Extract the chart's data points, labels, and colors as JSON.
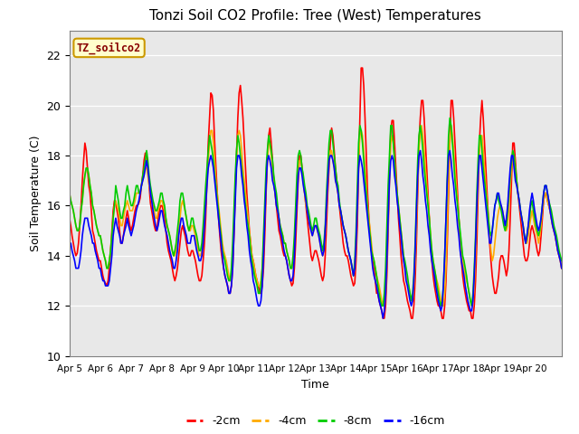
{
  "title": "Tonzi Soil CO2 Profile: Tree (West) Temperatures",
  "xlabel": "Time",
  "ylabel": "Soil Temperature (C)",
  "ylim": [
    10,
    23
  ],
  "yticks": [
    10,
    12,
    14,
    16,
    18,
    20,
    22
  ],
  "background_color": "#e8e8e8",
  "legend_label": "TZ_soilco2",
  "series_labels": [
    "-2cm",
    "-4cm",
    "-8cm",
    "-16cm"
  ],
  "series_colors": [
    "#ff0000",
    "#ffaa00",
    "#00cc00",
    "#0000ff"
  ],
  "xtick_labels": [
    "Apr 5",
    "Apr 6",
    "Apr 7",
    "Apr 8",
    "Apr 9",
    "Apr 10",
    "Apr 11",
    "Apr 12",
    "Apr 13",
    "Apr 14",
    "Apr 15",
    "Apr 16",
    "Apr 17",
    "Apr 18",
    "Apr 19",
    "Apr 20"
  ],
  "n_days": 16,
  "n_points_per_day": 24,
  "t2cm": [
    15.5,
    15.2,
    14.8,
    14.5,
    14.2,
    14.0,
    14.1,
    14.5,
    15.2,
    16.0,
    17.0,
    17.8,
    18.5,
    18.2,
    17.5,
    16.8,
    16.5,
    15.8,
    15.0,
    14.8,
    14.5,
    14.2,
    14.0,
    13.8,
    13.8,
    13.5,
    13.2,
    13.0,
    12.9,
    12.8,
    13.0,
    13.5,
    14.2,
    15.0,
    15.8,
    16.2,
    16.1,
    15.8,
    15.5,
    15.0,
    14.5,
    14.5,
    14.8,
    15.2,
    15.5,
    15.8,
    15.5,
    15.2,
    15.0,
    15.2,
    15.5,
    15.8,
    16.0,
    16.0,
    16.1,
    16.3,
    16.8,
    17.2,
    17.8,
    18.1,
    18.0,
    17.5,
    16.8,
    16.1,
    15.8,
    15.5,
    15.2,
    15.0,
    15.0,
    15.5,
    15.8,
    16.0,
    16.0,
    15.8,
    15.5,
    15.0,
    14.5,
    14.2,
    14.0,
    13.8,
    13.5,
    13.2,
    13.0,
    13.2,
    13.5,
    14.0,
    14.5,
    15.0,
    15.2,
    15.0,
    14.8,
    14.5,
    14.2,
    14.0,
    14.0,
    14.2,
    14.2,
    14.0,
    13.8,
    13.5,
    13.2,
    13.0,
    13.0,
    13.2,
    13.8,
    14.5,
    15.5,
    17.0,
    18.5,
    19.5,
    20.5,
    20.4,
    19.8,
    18.5,
    17.5,
    16.5,
    15.5,
    14.8,
    14.2,
    13.8,
    13.5,
    13.2,
    13.0,
    12.8,
    12.5,
    12.5,
    12.8,
    13.5,
    14.8,
    16.5,
    18.0,
    19.5,
    20.5,
    20.8,
    20.2,
    19.5,
    18.5,
    17.5,
    16.5,
    15.8,
    15.0,
    14.5,
    14.0,
    13.8,
    13.5,
    13.2,
    13.0,
    12.8,
    12.5,
    12.5,
    12.8,
    13.5,
    14.8,
    16.5,
    17.8,
    18.8,
    19.1,
    18.5,
    17.8,
    17.0,
    16.5,
    16.0,
    15.5,
    15.0,
    14.8,
    14.5,
    14.2,
    14.0,
    14.0,
    13.8,
    13.5,
    13.2,
    13.0,
    12.8,
    12.9,
    13.5,
    14.5,
    15.8,
    17.0,
    18.0,
    18.0,
    17.5,
    17.0,
    16.5,
    16.0,
    15.5,
    15.0,
    14.5,
    14.0,
    13.8,
    14.0,
    14.2,
    14.2,
    14.0,
    13.8,
    13.5,
    13.2,
    13.0,
    13.2,
    14.0,
    15.2,
    16.5,
    17.5,
    18.5,
    19.1,
    18.8,
    18.2,
    17.5,
    17.0,
    16.5,
    16.0,
    15.5,
    15.0,
    14.5,
    14.2,
    14.0,
    14.0,
    13.8,
    13.5,
    13.2,
    13.0,
    12.8,
    12.9,
    13.8,
    15.2,
    17.5,
    19.5,
    21.5,
    21.5,
    20.8,
    19.5,
    18.0,
    16.5,
    15.5,
    14.8,
    14.2,
    13.8,
    13.5,
    13.0,
    12.5,
    12.5,
    12.2,
    12.0,
    11.8,
    11.5,
    11.5,
    12.0,
    13.2,
    15.0,
    17.0,
    19.0,
    19.4,
    19.4,
    18.5,
    17.5,
    16.5,
    15.5,
    14.8,
    14.0,
    13.5,
    13.0,
    12.8,
    12.5,
    12.2,
    12.0,
    11.8,
    11.5,
    11.5,
    12.0,
    13.0,
    14.5,
    16.5,
    18.5,
    19.5,
    20.2,
    20.2,
    19.5,
    18.5,
    17.5,
    16.5,
    15.5,
    14.5,
    13.8,
    13.2,
    12.8,
    12.5,
    12.2,
    12.0,
    12.0,
    11.8,
    11.5,
    11.5,
    12.0,
    13.0,
    14.5,
    16.5,
    18.5,
    20.2,
    20.2,
    19.5,
    18.5,
    17.5,
    16.5,
    15.5,
    14.5,
    13.8,
    13.2,
    12.8,
    12.5,
    12.2,
    12.0,
    11.8,
    11.8,
    11.5,
    11.5,
    12.0,
    13.0,
    14.5,
    16.5,
    18.5,
    19.5,
    20.2,
    19.5,
    18.5,
    17.5,
    16.5,
    15.5,
    14.5,
    13.8,
    13.2,
    12.8,
    12.5,
    12.5,
    12.8,
    13.2,
    13.8,
    14.0,
    14.0,
    13.8,
    13.5,
    13.2,
    13.5,
    14.2,
    15.5,
    17.0,
    18.5,
    18.5,
    17.8,
    17.0,
    16.5,
    16.0,
    15.5,
    15.0,
    14.5,
    14.0,
    13.8,
    13.8,
    14.0,
    14.5,
    15.0,
    15.2,
    15.0,
    14.8,
    14.5,
    14.2,
    14.0,
    14.2,
    14.8,
    15.5,
    16.2,
    16.5,
    16.5,
    16.2,
    16.0,
    15.8,
    15.5,
    15.2,
    15.0,
    14.8,
    14.5,
    14.2,
    14.0,
    13.8,
    13.5
  ],
  "t4cm": [
    16.5,
    16.2,
    16.0,
    15.8,
    15.5,
    15.2,
    15.0,
    15.0,
    15.2,
    15.8,
    16.2,
    16.8,
    17.2,
    17.5,
    17.5,
    17.2,
    16.8,
    16.5,
    16.0,
    15.8,
    15.5,
    15.2,
    15.0,
    14.8,
    14.8,
    14.5,
    14.2,
    14.0,
    13.8,
    13.5,
    13.5,
    13.8,
    14.2,
    14.8,
    15.5,
    16.0,
    16.2,
    16.0,
    15.8,
    15.5,
    15.2,
    15.2,
    15.5,
    15.8,
    16.0,
    16.2,
    16.0,
    15.8,
    15.8,
    15.8,
    16.0,
    16.2,
    16.5,
    16.5,
    16.5,
    16.5,
    16.8,
    17.0,
    17.2,
    17.5,
    17.5,
    17.2,
    16.8,
    16.5,
    16.2,
    16.0,
    15.8,
    15.5,
    15.5,
    15.8,
    16.0,
    16.2,
    16.2,
    16.0,
    15.8,
    15.5,
    15.2,
    15.0,
    14.8,
    14.5,
    14.2,
    14.0,
    14.0,
    14.2,
    14.5,
    15.0,
    15.5,
    16.0,
    16.2,
    16.0,
    15.8,
    15.5,
    15.2,
    15.0,
    15.0,
    15.2,
    15.2,
    15.0,
    14.8,
    14.5,
    14.2,
    14.0,
    14.0,
    14.2,
    14.8,
    15.5,
    16.2,
    17.0,
    17.8,
    18.5,
    19.0,
    19.0,
    18.5,
    17.8,
    17.0,
    16.5,
    16.0,
    15.5,
    15.0,
    14.5,
    14.2,
    14.0,
    13.8,
    13.5,
    13.2,
    13.0,
    13.2,
    14.0,
    15.2,
    16.8,
    17.8,
    18.8,
    19.0,
    18.8,
    18.2,
    17.5,
    17.0,
    16.5,
    16.0,
    15.5,
    15.0,
    14.5,
    14.0,
    13.8,
    13.5,
    13.2,
    13.0,
    12.8,
    12.8,
    13.0,
    13.5,
    14.5,
    15.8,
    17.0,
    17.8,
    18.5,
    18.5,
    18.0,
    17.5,
    17.0,
    16.5,
    16.2,
    15.8,
    15.5,
    15.2,
    15.0,
    14.8,
    14.5,
    14.5,
    14.2,
    14.0,
    13.8,
    13.5,
    13.5,
    13.8,
    14.5,
    15.5,
    16.5,
    17.5,
    17.8,
    17.8,
    17.5,
    17.0,
    16.5,
    16.0,
    15.8,
    15.5,
    15.2,
    15.0,
    14.8,
    15.0,
    15.2,
    15.2,
    15.0,
    14.8,
    14.5,
    14.2,
    14.0,
    14.2,
    15.0,
    16.0,
    17.0,
    17.8,
    18.2,
    18.2,
    17.8,
    17.5,
    17.0,
    16.8,
    16.5,
    16.0,
    15.8,
    15.5,
    15.2,
    15.0,
    14.8,
    14.5,
    14.2,
    14.0,
    13.8,
    13.5,
    13.2,
    13.5,
    14.5,
    16.0,
    17.8,
    18.8,
    19.0,
    18.8,
    18.2,
    17.5,
    16.8,
    16.0,
    15.5,
    15.0,
    14.5,
    14.0,
    13.8,
    13.5,
    13.2,
    13.0,
    12.8,
    12.5,
    12.2,
    12.0,
    12.0,
    12.5,
    13.8,
    15.5,
    17.2,
    18.5,
    18.8,
    18.5,
    17.8,
    17.0,
    16.5,
    16.0,
    15.5,
    15.0,
    14.5,
    14.0,
    13.5,
    13.2,
    13.0,
    12.8,
    12.5,
    12.2,
    12.2,
    12.8,
    13.8,
    15.2,
    17.0,
    18.2,
    19.0,
    19.2,
    18.8,
    18.2,
    17.5,
    16.8,
    16.2,
    15.5,
    14.8,
    14.2,
    13.8,
    13.5,
    13.2,
    13.0,
    12.8,
    12.5,
    12.2,
    12.0,
    12.0,
    12.5,
    13.5,
    15.0,
    17.0,
    18.5,
    19.2,
    18.8,
    18.2,
    17.5,
    16.8,
    16.2,
    15.5,
    14.8,
    14.2,
    13.8,
    13.5,
    13.2,
    13.0,
    12.8,
    12.5,
    12.2,
    12.0,
    12.2,
    12.8,
    14.0,
    15.5,
    17.0,
    18.2,
    18.8,
    18.8,
    18.2,
    17.5,
    16.8,
    16.2,
    15.5,
    14.8,
    14.2,
    13.8,
    14.0,
    14.5,
    15.0,
    15.5,
    15.8,
    16.0,
    16.0,
    15.8,
    15.5,
    15.2,
    15.0,
    15.2,
    16.0,
    16.8,
    17.5,
    18.0,
    18.0,
    17.5,
    17.0,
    16.5,
    16.2,
    15.8,
    15.5,
    15.2,
    14.8,
    14.5,
    14.5,
    14.8,
    15.2,
    15.5,
    15.8,
    15.5,
    15.2,
    15.0,
    14.8,
    14.5,
    14.8,
    15.2,
    15.8,
    16.2,
    16.5,
    16.5,
    16.2,
    16.0,
    15.8,
    15.5,
    15.2,
    15.0,
    14.8,
    14.5,
    14.2,
    14.0,
    13.8,
    13.5
  ],
  "t8cm": [
    16.5,
    16.2,
    16.0,
    15.8,
    15.5,
    15.2,
    15.0,
    15.0,
    15.2,
    15.8,
    16.2,
    16.8,
    17.2,
    17.5,
    17.5,
    17.2,
    16.8,
    16.5,
    16.0,
    15.8,
    15.5,
    15.2,
    15.0,
    14.8,
    14.8,
    14.5,
    14.2,
    14.0,
    13.8,
    13.5,
    13.5,
    13.8,
    14.2,
    14.8,
    15.5,
    16.0,
    16.8,
    16.5,
    16.2,
    15.8,
    15.5,
    15.5,
    15.8,
    16.0,
    16.5,
    16.8,
    16.5,
    16.2,
    16.0,
    16.0,
    16.2,
    16.5,
    16.8,
    16.8,
    16.5,
    16.5,
    16.8,
    17.2,
    17.5,
    17.8,
    18.2,
    17.8,
    17.2,
    16.8,
    16.5,
    16.2,
    16.0,
    15.8,
    15.8,
    16.0,
    16.2,
    16.5,
    16.5,
    16.2,
    16.0,
    15.5,
    15.2,
    15.0,
    14.8,
    14.5,
    14.2,
    14.0,
    14.2,
    14.5,
    15.0,
    15.5,
    16.2,
    16.5,
    16.5,
    16.2,
    15.8,
    15.5,
    15.2,
    15.0,
    15.2,
    15.5,
    15.5,
    15.2,
    15.0,
    14.8,
    14.5,
    14.2,
    14.2,
    14.5,
    15.2,
    16.0,
    16.8,
    17.5,
    18.2,
    18.8,
    18.5,
    18.2,
    17.8,
    17.2,
    16.8,
    16.2,
    15.8,
    15.2,
    14.8,
    14.2,
    14.0,
    13.8,
    13.5,
    13.2,
    13.0,
    13.0,
    13.5,
    14.5,
    15.8,
    17.2,
    18.2,
    18.8,
    18.5,
    18.0,
    17.5,
    17.0,
    16.5,
    16.0,
    15.5,
    15.2,
    14.8,
    14.2,
    13.8,
    13.5,
    13.2,
    13.0,
    12.8,
    12.5,
    12.5,
    12.8,
    13.5,
    14.8,
    16.2,
    17.5,
    18.2,
    18.8,
    18.5,
    18.2,
    17.8,
    17.2,
    16.8,
    16.5,
    16.0,
    15.5,
    15.2,
    15.0,
    14.8,
    14.5,
    14.5,
    14.2,
    14.0,
    13.8,
    13.5,
    13.5,
    14.0,
    14.8,
    16.0,
    17.2,
    18.0,
    18.2,
    18.0,
    17.5,
    17.2,
    16.8,
    16.5,
    16.0,
    15.8,
    15.5,
    15.2,
    15.0,
    15.2,
    15.5,
    15.5,
    15.2,
    15.0,
    14.8,
    14.5,
    14.2,
    14.5,
    15.2,
    16.5,
    17.5,
    18.5,
    19.0,
    19.0,
    18.5,
    18.0,
    17.5,
    17.0,
    16.8,
    16.2,
    15.8,
    15.5,
    15.2,
    15.0,
    14.8,
    14.5,
    14.2,
    14.0,
    13.8,
    13.5,
    13.2,
    13.8,
    15.0,
    16.8,
    18.5,
    19.2,
    19.0,
    18.5,
    17.8,
    17.0,
    16.5,
    15.8,
    15.2,
    14.8,
    14.2,
    14.0,
    13.8,
    13.5,
    13.2,
    12.8,
    12.5,
    12.2,
    12.0,
    12.0,
    12.5,
    13.5,
    15.2,
    16.8,
    18.0,
    19.2,
    19.2,
    18.5,
    17.8,
    17.0,
    16.5,
    16.0,
    15.5,
    15.0,
    14.5,
    14.0,
    13.8,
    13.5,
    13.2,
    12.8,
    12.5,
    12.2,
    12.5,
    13.2,
    14.5,
    16.2,
    17.8,
    18.8,
    19.2,
    18.8,
    18.2,
    17.5,
    17.0,
    16.5,
    16.0,
    15.5,
    14.8,
    14.2,
    13.8,
    13.5,
    13.2,
    12.8,
    12.5,
    12.2,
    12.0,
    12.2,
    12.8,
    14.0,
    15.5,
    17.2,
    18.8,
    19.5,
    19.2,
    18.5,
    17.8,
    17.0,
    16.5,
    16.0,
    15.5,
    15.0,
    14.5,
    14.0,
    13.8,
    13.5,
    13.2,
    12.8,
    12.5,
    12.2,
    12.0,
    12.5,
    13.5,
    14.8,
    16.5,
    17.8,
    18.8,
    18.8,
    18.2,
    17.5,
    17.0,
    16.5,
    16.0,
    15.5,
    15.0,
    14.8,
    15.0,
    15.5,
    16.0,
    16.2,
    16.5,
    16.2,
    16.0,
    15.8,
    15.5,
    15.2,
    15.0,
    15.2,
    15.8,
    16.5,
    17.2,
    17.8,
    18.2,
    18.0,
    17.5,
    17.0,
    16.5,
    16.2,
    15.8,
    15.5,
    15.2,
    14.8,
    14.5,
    14.8,
    15.2,
    15.5,
    16.0,
    16.2,
    15.8,
    15.5,
    15.2,
    15.0,
    14.8,
    15.0,
    15.5,
    16.0,
    16.5,
    16.8,
    16.8,
    16.5,
    16.2,
    16.0,
    15.8,
    15.5,
    15.2,
    15.0,
    14.8,
    14.5,
    14.2,
    14.0,
    13.8
  ],
  "t16cm": [
    14.5,
    14.5,
    14.2,
    14.0,
    13.8,
    13.5,
    13.5,
    13.5,
    13.8,
    14.2,
    14.8,
    15.2,
    15.5,
    15.5,
    15.5,
    15.2,
    15.0,
    14.8,
    14.5,
    14.5,
    14.2,
    14.0,
    13.8,
    13.5,
    13.5,
    13.2,
    13.0,
    13.0,
    12.8,
    12.8,
    12.8,
    13.0,
    13.5,
    14.0,
    14.8,
    15.2,
    15.5,
    15.2,
    15.0,
    14.8,
    14.5,
    14.5,
    14.8,
    15.0,
    15.2,
    15.5,
    15.2,
    15.0,
    14.8,
    15.0,
    15.2,
    15.5,
    15.8,
    16.0,
    16.2,
    16.5,
    16.8,
    17.0,
    17.2,
    17.5,
    17.8,
    17.5,
    17.0,
    16.5,
    16.2,
    15.8,
    15.5,
    15.2,
    15.0,
    15.2,
    15.5,
    15.8,
    15.8,
    15.5,
    15.2,
    15.0,
    14.8,
    14.5,
    14.2,
    14.0,
    13.8,
    13.5,
    13.5,
    13.8,
    14.2,
    14.8,
    15.2,
    15.5,
    15.5,
    15.2,
    15.0,
    14.8,
    14.5,
    14.5,
    14.5,
    14.8,
    14.8,
    14.8,
    14.5,
    14.2,
    14.0,
    13.8,
    13.8,
    14.0,
    14.5,
    15.2,
    16.0,
    16.8,
    17.5,
    17.8,
    18.0,
    17.8,
    17.5,
    17.0,
    16.5,
    16.0,
    15.5,
    15.0,
    14.5,
    14.0,
    13.5,
    13.2,
    13.0,
    12.8,
    12.5,
    12.5,
    12.8,
    13.5,
    14.8,
    16.2,
    17.5,
    18.0,
    18.0,
    17.8,
    17.2,
    16.8,
    16.2,
    15.8,
    15.2,
    14.8,
    14.2,
    13.8,
    13.5,
    13.0,
    12.8,
    12.5,
    12.2,
    12.0,
    12.0,
    12.2,
    12.8,
    14.0,
    15.5,
    16.8,
    17.8,
    18.0,
    17.8,
    17.5,
    17.0,
    16.8,
    16.5,
    16.0,
    15.8,
    15.5,
    15.0,
    14.8,
    14.5,
    14.2,
    14.0,
    13.8,
    13.5,
    13.2,
    13.0,
    13.0,
    13.2,
    14.0,
    15.2,
    16.2,
    17.2,
    17.5,
    17.5,
    17.2,
    16.8,
    16.5,
    16.2,
    15.8,
    15.5,
    15.2,
    15.0,
    14.8,
    15.0,
    15.2,
    15.2,
    15.0,
    14.8,
    14.5,
    14.2,
    14.0,
    14.2,
    15.0,
    16.0,
    17.0,
    17.8,
    18.0,
    18.0,
    17.8,
    17.5,
    17.0,
    16.8,
    16.5,
    16.0,
    15.8,
    15.5,
    15.2,
    15.0,
    14.8,
    14.5,
    14.2,
    14.0,
    13.8,
    13.5,
    13.2,
    13.5,
    14.5,
    16.0,
    17.5,
    18.0,
    17.8,
    17.5,
    17.0,
    16.5,
    16.0,
    15.5,
    15.0,
    14.5,
    14.0,
    13.5,
    13.2,
    13.0,
    12.8,
    12.5,
    12.2,
    12.0,
    11.8,
    11.5,
    11.8,
    12.5,
    13.8,
    15.5,
    17.0,
    17.8,
    18.0,
    17.8,
    17.2,
    16.8,
    16.2,
    15.8,
    15.2,
    14.8,
    14.2,
    13.8,
    13.5,
    13.0,
    12.8,
    12.5,
    12.2,
    12.0,
    12.2,
    13.0,
    14.2,
    15.8,
    17.2,
    18.0,
    18.2,
    17.8,
    17.2,
    16.8,
    16.2,
    15.8,
    15.2,
    14.8,
    14.2,
    13.8,
    13.5,
    13.2,
    12.8,
    12.5,
    12.2,
    12.0,
    11.8,
    12.0,
    12.8,
    14.0,
    15.5,
    17.0,
    18.0,
    18.2,
    17.8,
    17.2,
    16.8,
    16.2,
    15.8,
    15.2,
    14.8,
    14.2,
    13.8,
    13.5,
    13.2,
    12.8,
    12.5,
    12.2,
    12.0,
    11.8,
    11.8,
    12.2,
    13.2,
    14.5,
    16.0,
    17.2,
    18.0,
    18.0,
    17.5,
    17.0,
    16.5,
    16.0,
    15.5,
    15.0,
    14.5,
    14.5,
    15.0,
    15.5,
    16.0,
    16.2,
    16.5,
    16.5,
    16.2,
    16.0,
    15.8,
    15.5,
    15.2,
    15.5,
    16.0,
    16.8,
    17.5,
    18.0,
    18.0,
    17.5,
    17.0,
    16.8,
    16.5,
    16.2,
    15.8,
    15.5,
    15.2,
    14.8,
    14.5,
    14.8,
    15.2,
    15.8,
    16.2,
    16.5,
    16.2,
    15.8,
    15.5,
    15.2,
    15.0,
    15.2,
    15.5,
    16.0,
    16.5,
    16.8,
    16.8,
    16.5,
    16.2,
    15.8,
    15.5,
    15.2,
    15.0,
    14.8,
    14.5,
    14.2,
    14.0,
    13.8,
    13.5
  ]
}
